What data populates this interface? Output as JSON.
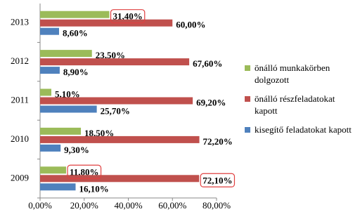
{
  "chart_data": {
    "type": "bar",
    "orientation": "horizontal",
    "categories": [
      "2009",
      "2010",
      "2011",
      "2012",
      "2013"
    ],
    "series": [
      {
        "name": "önálló munkakörben dolgozott",
        "color": "#9bbb59",
        "values": [
          11.8,
          18.5,
          5.1,
          23.5,
          31.4
        ],
        "value_labels": [
          "11,80%",
          "18,50%",
          "5,10%",
          "23,50%",
          "31,40%"
        ]
      },
      {
        "name": "önálló részfeladatokat kapott",
        "color": "#c0504d",
        "values": [
          72.1,
          72.2,
          69.2,
          67.6,
          60.0
        ],
        "value_labels": [
          "72,10%",
          "72,20%",
          "69,20%",
          "67,60%",
          "60,00%"
        ]
      },
      {
        "name": "kisegítő feladatokat kapott",
        "color": "#4f81bd",
        "values": [
          16.1,
          9.3,
          25.7,
          8.9,
          8.6
        ],
        "value_labels": [
          "16,10%",
          "9,30%",
          "25,70%",
          "8,90%",
          "8,60%"
        ]
      }
    ],
    "xlim": [
      0,
      80
    ],
    "xticks": [
      {
        "value": 0,
        "label": "0,00%"
      },
      {
        "value": 20,
        "label": "20,00%"
      },
      {
        "value": 40,
        "label": "40,00%"
      },
      {
        "value": 60,
        "label": "60,00%"
      },
      {
        "value": 80,
        "label": "80,00%"
      }
    ],
    "grid": false,
    "legend": "right"
  }
}
